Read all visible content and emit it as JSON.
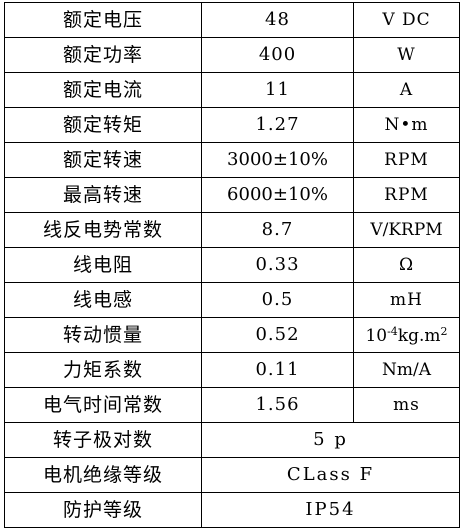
{
  "rows": [
    {
      "param": "额定电压",
      "value": "48",
      "unit": "V DC"
    },
    {
      "param": "额定功率",
      "value": "400",
      "unit": "W"
    },
    {
      "param": "额定电流",
      "value": "11",
      "unit": "A"
    },
    {
      "param": "额定转矩",
      "value": "1.27",
      "unit": "N•m"
    },
    {
      "param": "额定转速",
      "value": "3000±10%",
      "unit": "RPM"
    },
    {
      "param": "最高转速",
      "value": "6000±10%",
      "unit": "RPM"
    },
    {
      "param": "线反电势常数",
      "value": "8.7",
      "unit": "V/KRPM"
    },
    {
      "param": "线电阻",
      "value": "0.33",
      "unit": "Ω"
    },
    {
      "param": "线电感",
      "value": "0.5",
      "unit": "mH"
    },
    {
      "param": "转动惯量",
      "value": "0.52",
      "unit_base": "10",
      "unit_exp": "-4",
      "unit_mid": "kg.m",
      "unit_exp2": "2"
    },
    {
      "param": "力矩系数",
      "value": "0.11",
      "unit": "Nm/A"
    },
    {
      "param": "电气时间常数",
      "value": "1.56",
      "unit": "ms"
    }
  ],
  "merged_rows": [
    {
      "param": "转子极对数",
      "value": "5 p"
    },
    {
      "param": "电机绝缘等级",
      "value": "CLass F"
    },
    {
      "param": "防护等级",
      "value": "IP54"
    }
  ]
}
